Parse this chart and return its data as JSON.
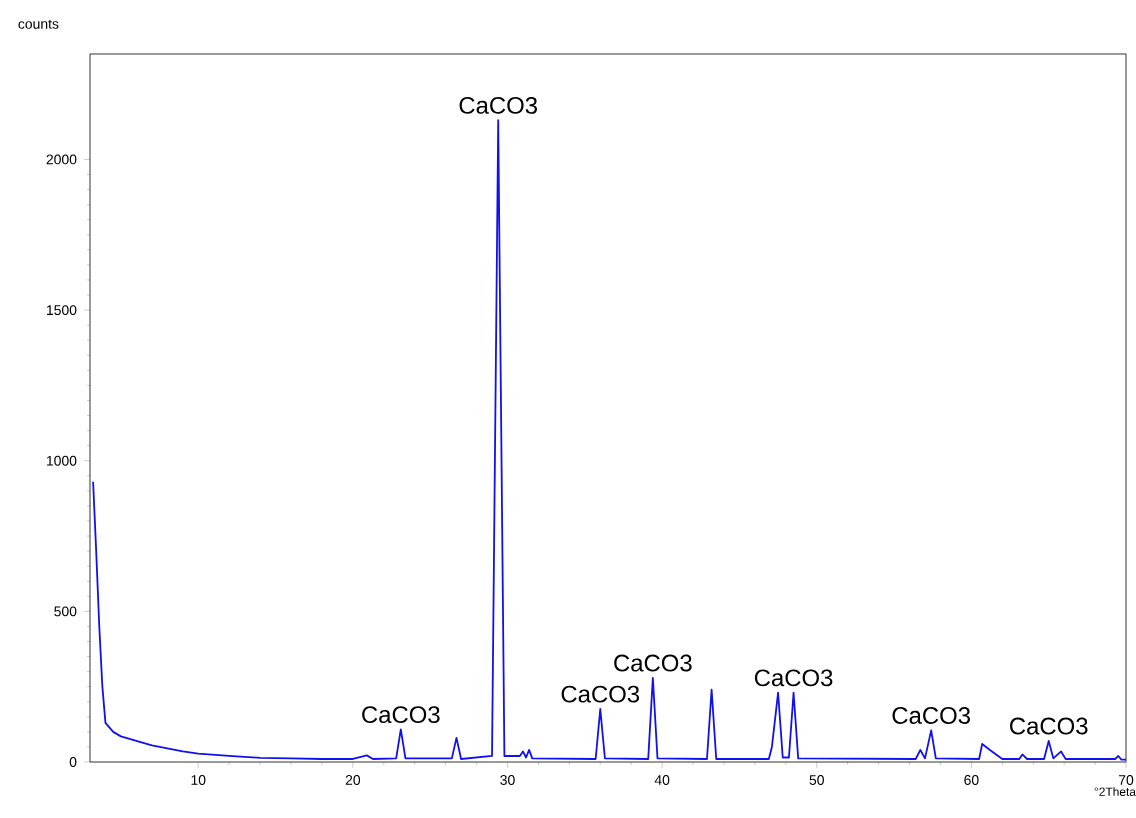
{
  "chart_data": {
    "type": "line",
    "xlabel": "°2Theta",
    "ylabel": "counts",
    "xlim": [
      3,
      70
    ],
    "ylim": [
      0,
      2350
    ],
    "xticks": [
      10,
      20,
      30,
      40,
      50,
      60,
      70
    ],
    "yticks": [
      0,
      500,
      1000,
      1500,
      2000
    ],
    "grid": false,
    "marker": "none",
    "line_style": "solid",
    "series": [
      {
        "color": "#1010f0",
        "x": [
          3.2,
          3.4,
          3.6,
          3.8,
          4.0,
          4.5,
          5,
          6,
          7,
          8,
          9,
          10,
          12,
          14,
          16,
          18,
          20,
          20.9,
          21.3,
          22.8,
          23.1,
          23.4,
          26.4,
          26.7,
          27.0,
          29.0,
          29.4,
          29.8,
          30.8,
          31.0,
          31.2,
          31.4,
          31.6,
          35.7,
          36.0,
          36.3,
          39.1,
          39.4,
          39.7,
          42.9,
          43.2,
          43.5,
          46.9,
          47.1,
          47.5,
          47.8,
          48.2,
          48.5,
          48.8,
          56.4,
          56.7,
          57.0,
          57.4,
          57.7,
          60.5,
          60.7,
          61.2,
          61.6,
          62,
          63.1,
          63.3,
          63.6,
          64.7,
          65.0,
          65.3,
          65.8,
          66.1,
          69.3,
          69.5,
          69.7,
          70
        ],
        "values": [
          930,
          700,
          450,
          250,
          130,
          100,
          85,
          70,
          55,
          45,
          35,
          28,
          20,
          14,
          12,
          10,
          10,
          22,
          10,
          12,
          108,
          12,
          12,
          80,
          10,
          20,
          2130,
          20,
          20,
          35,
          15,
          40,
          12,
          10,
          176,
          12,
          10,
          279,
          12,
          10,
          240,
          10,
          10,
          50,
          230,
          15,
          15,
          230,
          12,
          10,
          40,
          12,
          105,
          12,
          10,
          60,
          40,
          25,
          10,
          10,
          25,
          10,
          10,
          70,
          12,
          35,
          10,
          10,
          20,
          8,
          8
        ]
      }
    ],
    "annotations": [
      {
        "text": "CaCO3",
        "x": 23.1,
        "y": 108
      },
      {
        "text": "CaCO3",
        "x": 29.4,
        "y": 2130
      },
      {
        "text": "CaCO3",
        "x": 36.0,
        "y": 176
      },
      {
        "text": "CaCO3",
        "x": 39.4,
        "y": 279
      },
      {
        "text": "CaCO3",
        "x": 48.5,
        "y": 230
      },
      {
        "text": "CaCO3",
        "x": 57.4,
        "y": 105
      },
      {
        "text": "CaCO3",
        "x": 65.0,
        "y": 70
      }
    ]
  }
}
